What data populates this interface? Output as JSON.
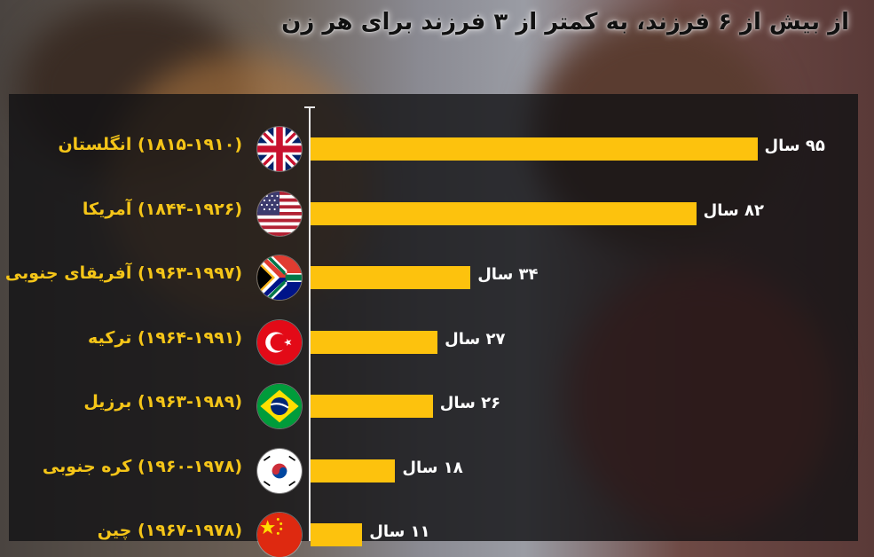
{
  "title": "از بیش از ۶ فرزند، به کمتر از ۳ فرزند برای هر زن",
  "colors": {
    "bar": "#fdc20d",
    "label": "#f5c518",
    "value": "#ffffff",
    "panel": "#121214"
  },
  "chart_data": {
    "type": "bar",
    "orientation": "horizontal",
    "title": "از بیش از ۶ فرزند، به کمتر از ۳ فرزند برای هر زن",
    "xlabel": "",
    "ylabel": "",
    "unit": "سال",
    "grid": false,
    "xlim": [
      0,
      100
    ],
    "categories": [
      "(۱۸۱۵-۱۹۱۰) انگلستان",
      "(۱۸۴۴-۱۹۲۶) آمریکا",
      "(۱۹۶۳-۱۹۹۷) آفریقای جنوبی",
      "(۱۹۶۴-۱۹۹۱) ترکیه",
      "(۱۹۶۳-۱۹۸۹) برزیل",
      "(۱۹۶۰-۱۹۷۸) کره جنوبی",
      "(۱۹۶۷-۱۹۷۸) چین"
    ],
    "values": [
      95,
      82,
      34,
      27,
      26,
      18,
      11
    ],
    "value_labels": [
      "۹۵ سال",
      "۸۲ سال",
      "۳۴ سال",
      "۲۷ سال",
      "۲۶ سال",
      "۱۸ سال",
      "۱۱ سال"
    ],
    "flags": [
      "uk-flag-icon",
      "usa-flag-icon",
      "south-africa-flag-icon",
      "turkey-flag-icon",
      "brazil-flag-icon",
      "south-korea-flag-icon",
      "china-flag-icon"
    ]
  }
}
